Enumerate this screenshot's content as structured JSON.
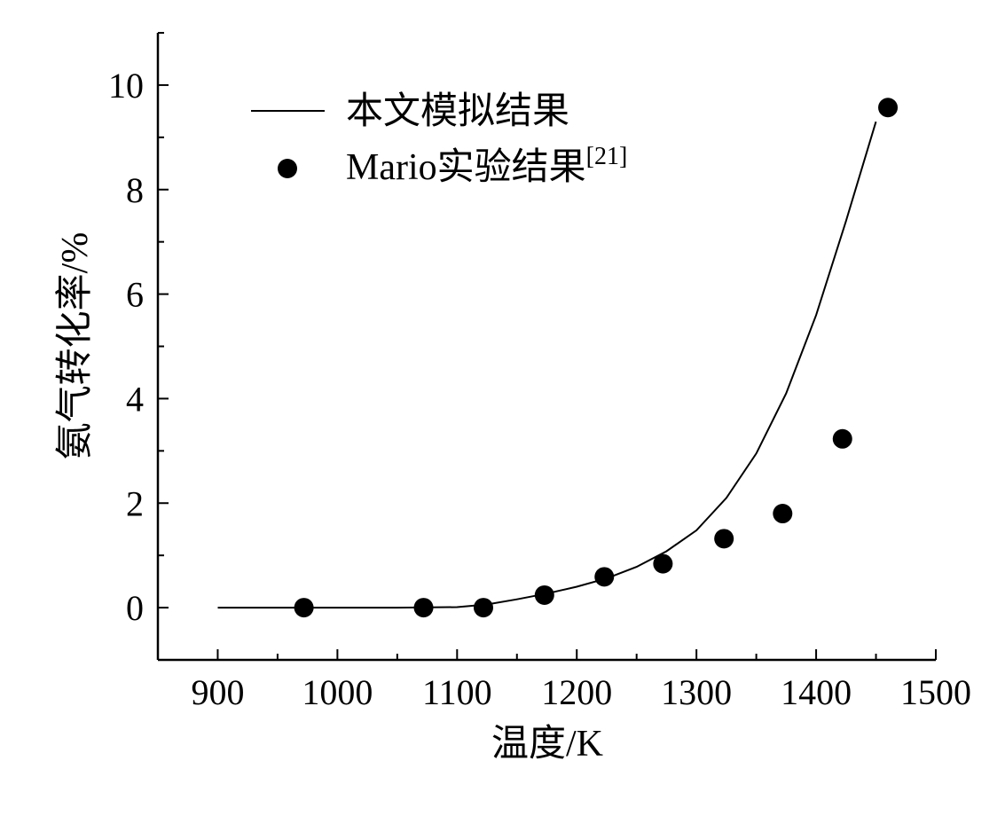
{
  "chart_data": {
    "type": "line",
    "xlabel": "温度/K",
    "ylabel": "氨气转化率/%",
    "xlim": [
      850,
      1500
    ],
    "ylim": [
      -1,
      11
    ],
    "xticks": [
      900,
      1000,
      1100,
      1200,
      1300,
      1400,
      1500
    ],
    "xtick_labels": [
      "900",
      "1000",
      "1100",
      "1200",
      "1300",
      "1400",
      "1500"
    ],
    "yticks": [
      0,
      2,
      4,
      6,
      8,
      10
    ],
    "ytick_labels": [
      "0",
      "2",
      "4",
      "6",
      "8",
      "10"
    ],
    "grid": false,
    "legend_position": "top-left",
    "series": [
      {
        "name": "本文模拟结果",
        "kind": "line",
        "color": "#000000",
        "x": [
          900,
          950,
          1000,
          1050,
          1100,
          1125,
          1150,
          1175,
          1200,
          1225,
          1250,
          1275,
          1300,
          1325,
          1350,
          1375,
          1400,
          1425,
          1450
        ],
        "y": [
          0,
          0,
          0,
          0,
          0.01,
          0.06,
          0.16,
          0.27,
          0.4,
          0.56,
          0.78,
          1.08,
          1.48,
          2.1,
          2.95,
          4.1,
          5.6,
          7.4,
          9.3
        ]
      },
      {
        "name": "Mario实验结果",
        "name_superscript": "[21]",
        "kind": "scatter",
        "color": "#000000",
        "x": [
          972,
          1072,
          1122,
          1173,
          1223,
          1272,
          1323,
          1372,
          1422,
          1460
        ],
        "y": [
          0,
          0,
          0,
          0.24,
          0.59,
          0.84,
          1.32,
          1.8,
          3.23,
          9.57
        ]
      }
    ]
  }
}
